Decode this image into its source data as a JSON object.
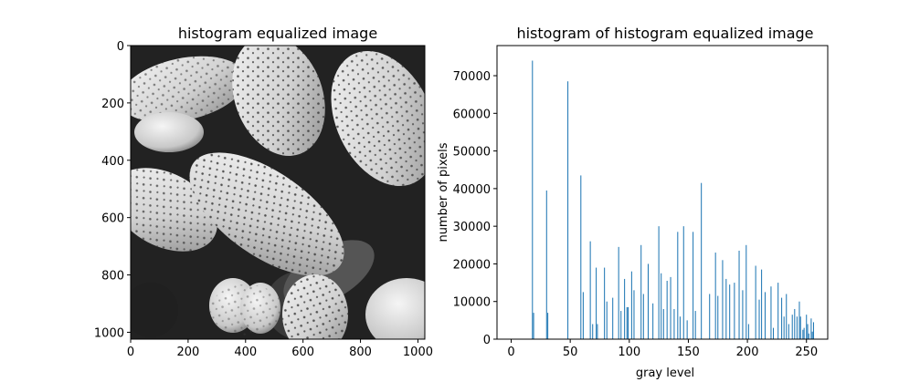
{
  "chart_data": [
    {
      "type": "image",
      "title": "histogram equalized image",
      "xticks": [
        0,
        200,
        400,
        600,
        800,
        1000
      ],
      "yticks": [
        0,
        200,
        400,
        600,
        800,
        1000
      ],
      "xlim": [
        0,
        1024
      ],
      "ylim": [
        1024,
        0
      ],
      "colormap": "gray",
      "content": "grayscale micrograph of pollen grains"
    },
    {
      "type": "bar",
      "title": "histogram of histogram equalized image",
      "xlabel": "gray level",
      "ylabel": "number of pixels",
      "xticks": [
        0,
        50,
        100,
        150,
        200,
        250
      ],
      "yticks": [
        0,
        10000,
        20000,
        30000,
        40000,
        50000,
        60000,
        70000
      ],
      "xlim": [
        -12,
        268
      ],
      "ylim": [
        0,
        78000
      ],
      "bar_color": "#1f77b4",
      "x": [
        18,
        19,
        30,
        31,
        48,
        59,
        61,
        67,
        69,
        72,
        73,
        79,
        81,
        86,
        91,
        93,
        96,
        98,
        99,
        102,
        104,
        110,
        112,
        116,
        120,
        125,
        127,
        129,
        132,
        135,
        138,
        141,
        143,
        146,
        149,
        154,
        156,
        161,
        168,
        173,
        175,
        179,
        182,
        185,
        189,
        193,
        196,
        199,
        201,
        207,
        210,
        212,
        215,
        220,
        222,
        226,
        229,
        231,
        233,
        235,
        238,
        240,
        242,
        244,
        245,
        247,
        248,
        250,
        251,
        252,
        254,
        255,
        256
      ],
      "values": [
        74000,
        7000,
        39500,
        7000,
        68500,
        43500,
        12500,
        26000,
        4000,
        19000,
        4000,
        19000,
        10000,
        11000,
        24500,
        7500,
        16000,
        8500,
        8500,
        18000,
        13000,
        25000,
        12000,
        20000,
        9500,
        30000,
        17500,
        8000,
        15500,
        16500,
        8000,
        28500,
        6000,
        30000,
        5000,
        28500,
        7500,
        41500,
        12000,
        23000,
        11500,
        21000,
        16000,
        14500,
        15000,
        23500,
        13000,
        25000,
        4000,
        19500,
        10500,
        18500,
        12500,
        14000,
        3000,
        15000,
        11000,
        6000,
        12000,
        4000,
        6500,
        8000,
        6000,
        10000,
        6000,
        2500,
        3000,
        6500,
        4000,
        1500,
        5500,
        2000,
        4500
      ]
    }
  ]
}
